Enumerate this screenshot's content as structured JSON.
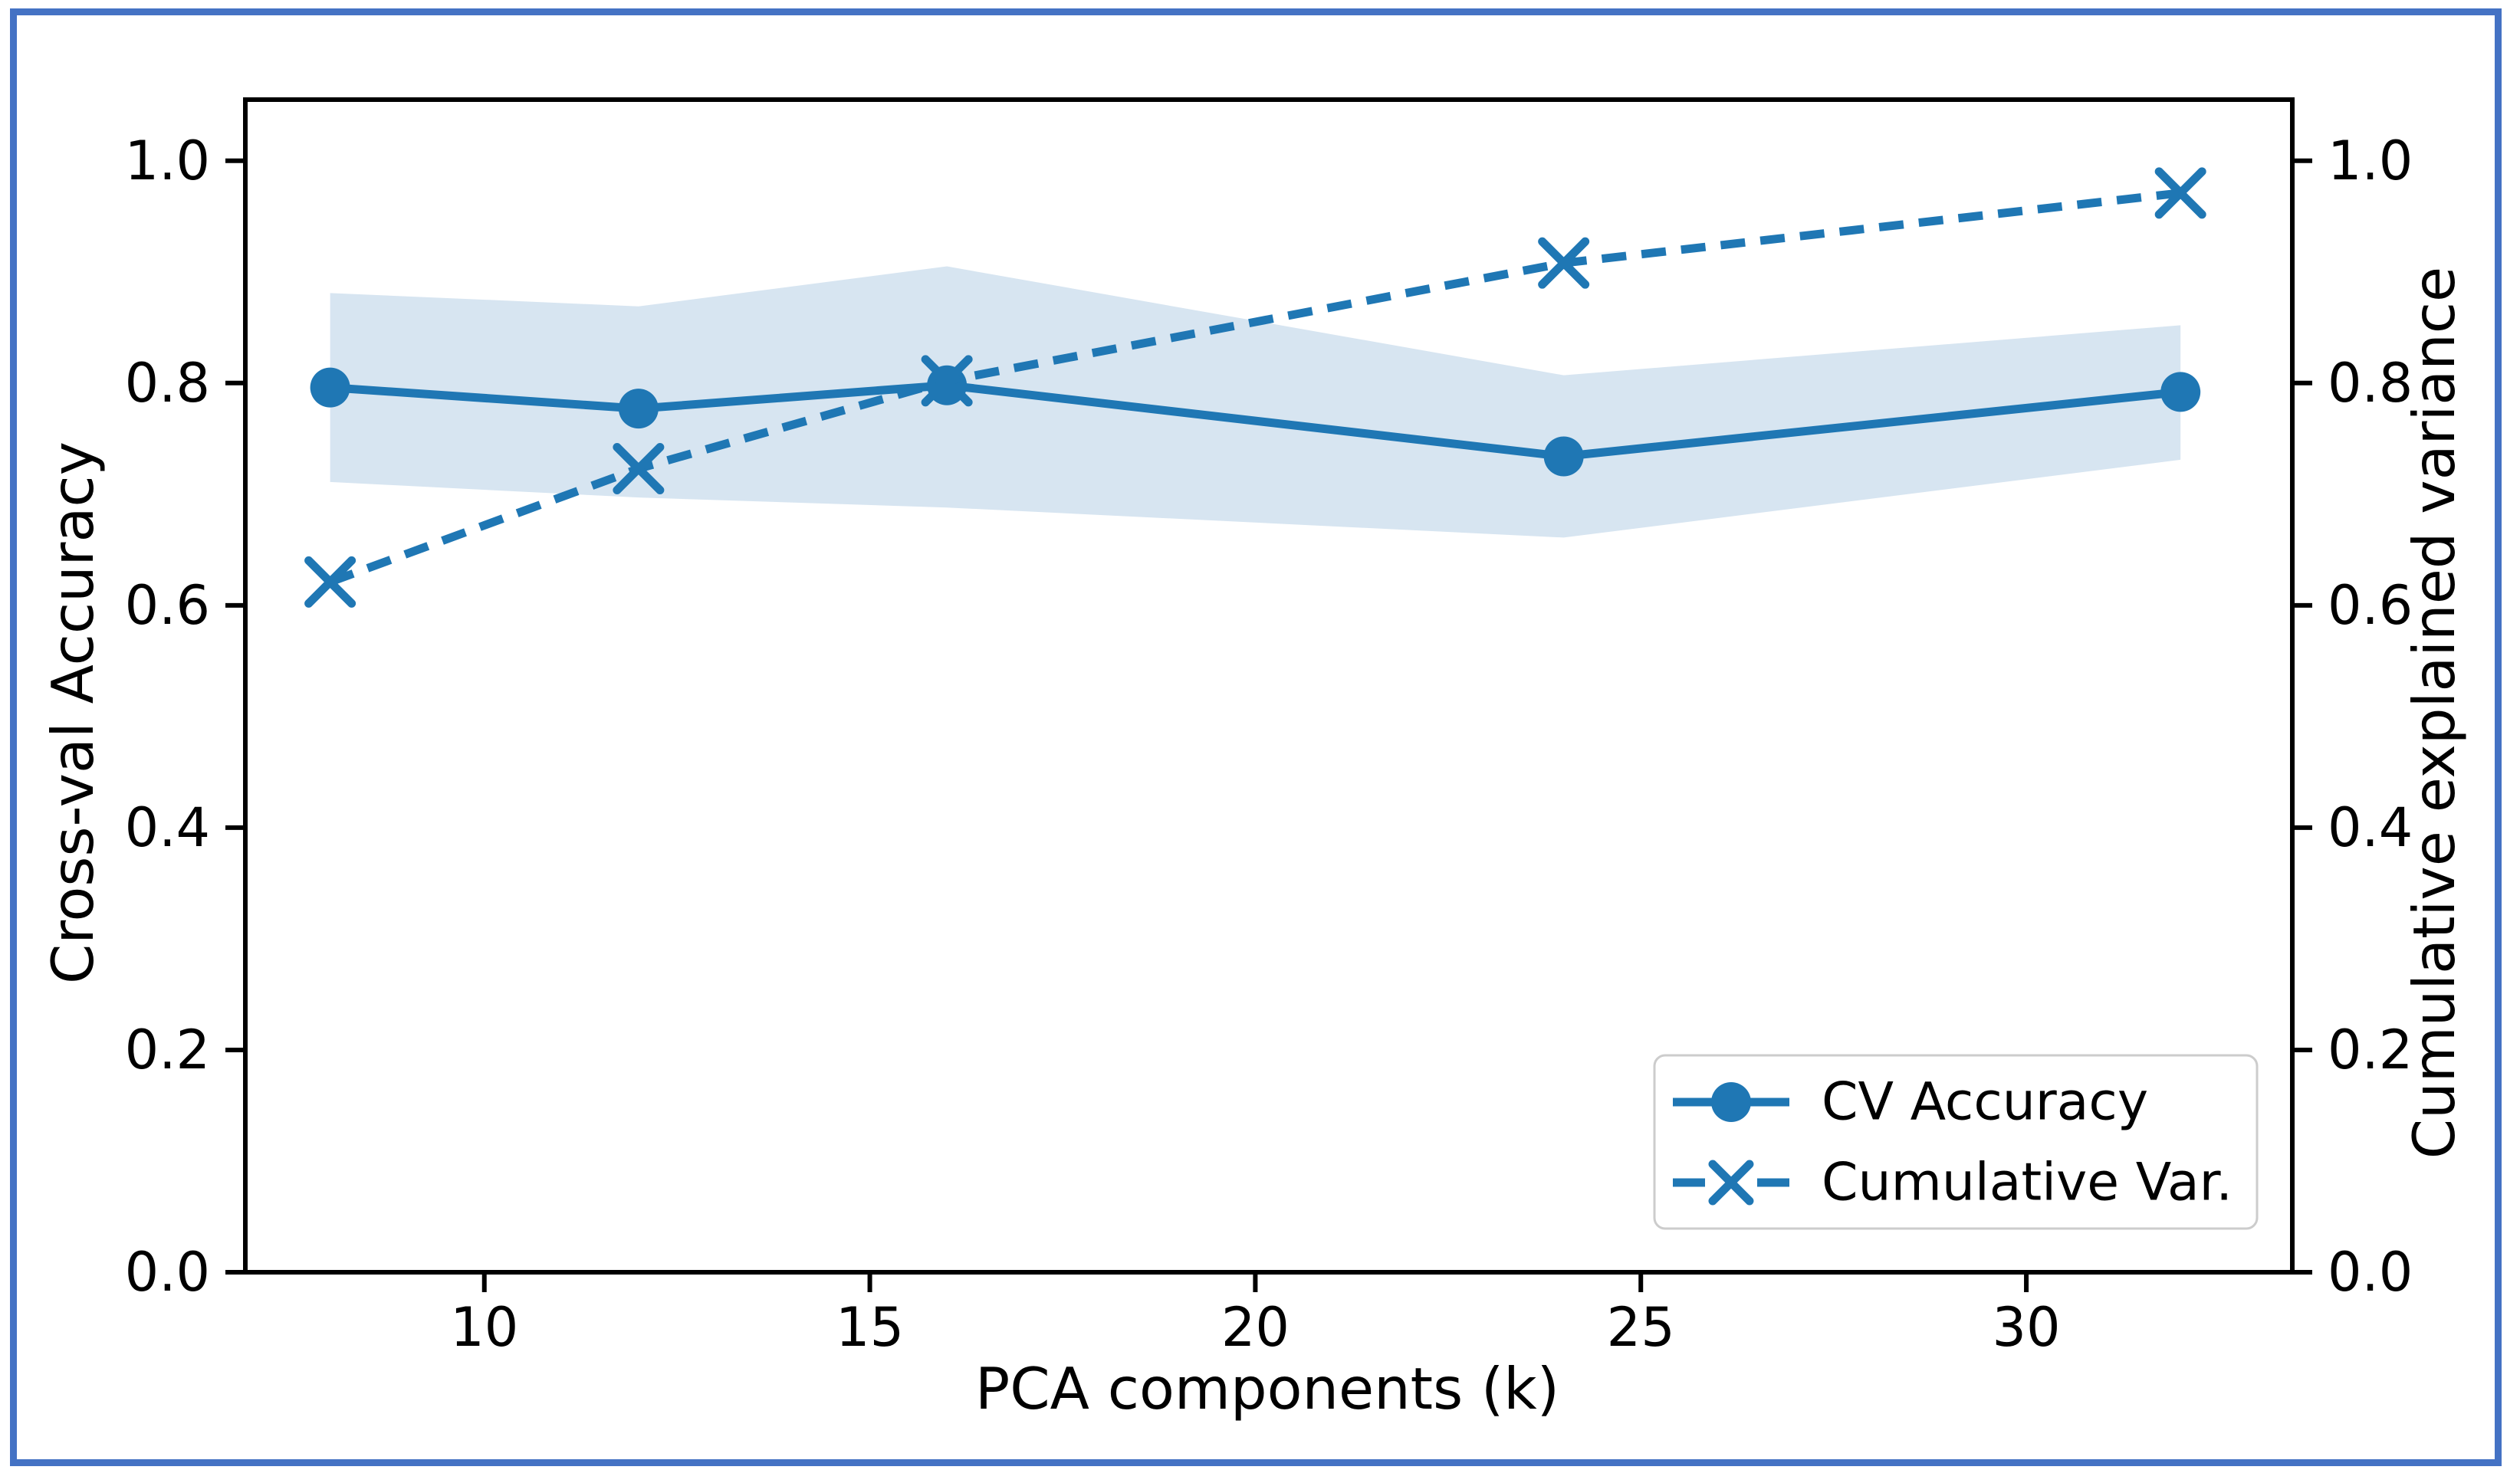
{
  "chart_data": {
    "type": "line",
    "title": "",
    "xlabel": "PCA components (k)",
    "ylabel_left": "Cross-val Accuracy",
    "ylabel_right": "Cumulative explained variance",
    "x": [
      8,
      12,
      16,
      24,
      32
    ],
    "series": [
      {
        "name": "CV Accuracy",
        "axis": "left",
        "line_style": "solid",
        "marker": "circle",
        "values": [
          0.796,
          0.777,
          0.798,
          0.734,
          0.792
        ]
      },
      {
        "name": "Cumulative Var.",
        "axis": "right",
        "line_style": "dashed",
        "marker": "x",
        "values": [
          0.621,
          0.723,
          0.802,
          0.908,
          0.971
        ]
      }
    ],
    "band": {
      "series": "CV Accuracy",
      "upper": [
        0.881,
        0.869,
        0.905,
        0.807,
        0.852
      ],
      "lower": [
        0.711,
        0.697,
        0.688,
        0.661,
        0.731
      ]
    },
    "xticks": [
      10,
      15,
      20,
      25,
      30
    ],
    "yticks_left": [
      0,
      0.2,
      0.4,
      0.6,
      0.8,
      1
    ],
    "yticks_right": [
      0,
      0.2,
      0.4,
      0.6,
      0.8,
      1
    ],
    "xlim": [
      6.9,
      33.45
    ],
    "ylim": [
      0,
      1.055
    ],
    "grid": false,
    "legend_position": "lower right",
    "colors": {
      "line": "#1f77b4",
      "band": "#d7e5f1",
      "axis": "#000000",
      "figure_border": "#4472c4",
      "legend_border": "#cccccc"
    }
  }
}
